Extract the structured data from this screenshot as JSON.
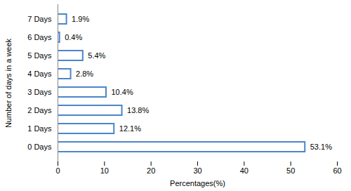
{
  "chart_data": {
    "type": "bar",
    "orientation": "horizontal",
    "x_label": "Percentages(%)",
    "y_label": "Number of days in a week",
    "categories": [
      "0 Days",
      "1 Days",
      "2 Days",
      "3 Days",
      "4 Days",
      "5 Days",
      "6 Days",
      "7 Days"
    ],
    "values": [
      53.1,
      12.1,
      13.8,
      10.4,
      2.8,
      5.4,
      0.4,
      1.9
    ],
    "value_labels": [
      "53.1%",
      "12.1%",
      "13.8%",
      "10.4%",
      "2.8%",
      "5.4%",
      "0.4%",
      "1.9%"
    ],
    "color": "#4a86c8",
    "xlim": [
      0,
      60
    ],
    "xticks": [
      0,
      10,
      20,
      30,
      40,
      50,
      60
    ],
    "grid": false,
    "data_labels": true
  }
}
